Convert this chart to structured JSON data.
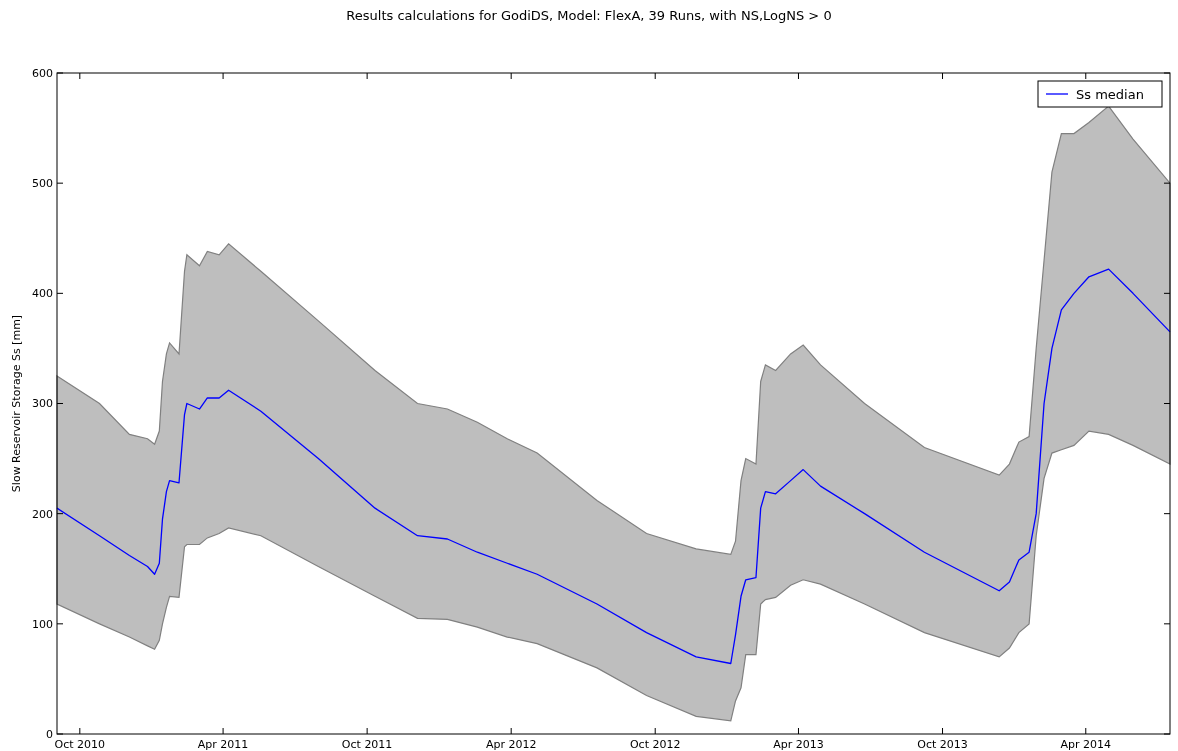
{
  "chart_data": {
    "type": "line",
    "title": "Results calculations for GodiDS, Model: FlexA, 39 Runs, with NS,LogNS > 0",
    "ylabel": "Slow Reservoir Storage Ss [mm]",
    "x": [
      "2010-09-02",
      "2010-10-26",
      "2010-12-03",
      "2010-12-26",
      "2011-01-04",
      "2011-01-10",
      "2011-01-14",
      "2011-01-19",
      "2011-01-23",
      "2011-02-04",
      "2011-02-11",
      "2011-02-14",
      "2011-03-02",
      "2011-03-12",
      "2011-03-27",
      "2011-04-08",
      "2011-05-19",
      "2011-07-31",
      "2011-10-11",
      "2011-12-04",
      "2012-01-11",
      "2012-02-18",
      "2012-03-27",
      "2012-05-04",
      "2012-07-19",
      "2012-09-20",
      "2012-11-22",
      "2013-01-05",
      "2013-01-11",
      "2013-01-18",
      "2013-01-24",
      "2013-02-06",
      "2013-02-12",
      "2013-02-18",
      "2013-03-03",
      "2013-03-22",
      "2013-04-07",
      "2013-04-29",
      "2013-06-24",
      "2013-09-08",
      "2013-12-12",
      "2013-12-25",
      "2014-01-06",
      "2014-01-19",
      "2014-01-28",
      "2014-02-07",
      "2014-02-17",
      "2014-03-01",
      "2014-03-17",
      "2014-04-05",
      "2014-04-30",
      "2014-05-31",
      "2014-07-17"
    ],
    "series": [
      {
        "name": "Ss median",
        "color": "#0000ff",
        "values": [
          205,
          180,
          162,
          152,
          145,
          155,
          195,
          220,
          230,
          228,
          290,
          300,
          295,
          305,
          305,
          312,
          293,
          250,
          205,
          180,
          177,
          165,
          155,
          145,
          118,
          92,
          70,
          64,
          90,
          125,
          140,
          142,
          205,
          220,
          218,
          230,
          240,
          225,
          200,
          165,
          130,
          138,
          158,
          165,
          200,
          300,
          350,
          385,
          400,
          415,
          422,
          400,
          365
        ],
        "upper": [
          325,
          300,
          272,
          268,
          263,
          275,
          320,
          345,
          355,
          345,
          420,
          435,
          425,
          438,
          435,
          445,
          420,
          375,
          330,
          300,
          295,
          283,
          268,
          255,
          212,
          182,
          168,
          163,
          175,
          230,
          250,
          245,
          320,
          335,
          330,
          345,
          353,
          335,
          300,
          260,
          235,
          245,
          265,
          270,
          350,
          430,
          510,
          545,
          545,
          555,
          570,
          540,
          500
        ],
        "lower": [
          118,
          100,
          88,
          80,
          77,
          85,
          100,
          115,
          125,
          124,
          170,
          172,
          172,
          178,
          182,
          187,
          180,
          152,
          125,
          105,
          104,
          97,
          88,
          82,
          60,
          35,
          16,
          12,
          30,
          42,
          72,
          72,
          118,
          122,
          124,
          135,
          140,
          136,
          118,
          92,
          70,
          78,
          92,
          100,
          180,
          232,
          255,
          258,
          262,
          275,
          272,
          262,
          245
        ]
      }
    ],
    "xlim": [
      "2010-09-02",
      "2014-07-17"
    ],
    "xticks": [
      {
        "value": "2010-10-01",
        "label": "Oct 2010"
      },
      {
        "value": "2011-04-01",
        "label": "Apr 2011"
      },
      {
        "value": "2011-10-01",
        "label": "Oct 2011"
      },
      {
        "value": "2012-04-01",
        "label": "Apr 2012"
      },
      {
        "value": "2012-10-01",
        "label": "Oct 2012"
      },
      {
        "value": "2013-04-01",
        "label": "Apr 2013"
      },
      {
        "value": "2013-10-01",
        "label": "Oct 2013"
      },
      {
        "value": "2014-04-01",
        "label": "Apr 2014"
      }
    ],
    "ylim": [
      0,
      600
    ],
    "yticks": [
      0,
      100,
      200,
      300,
      400,
      500,
      600
    ],
    "legend": "top right",
    "grid": false
  }
}
